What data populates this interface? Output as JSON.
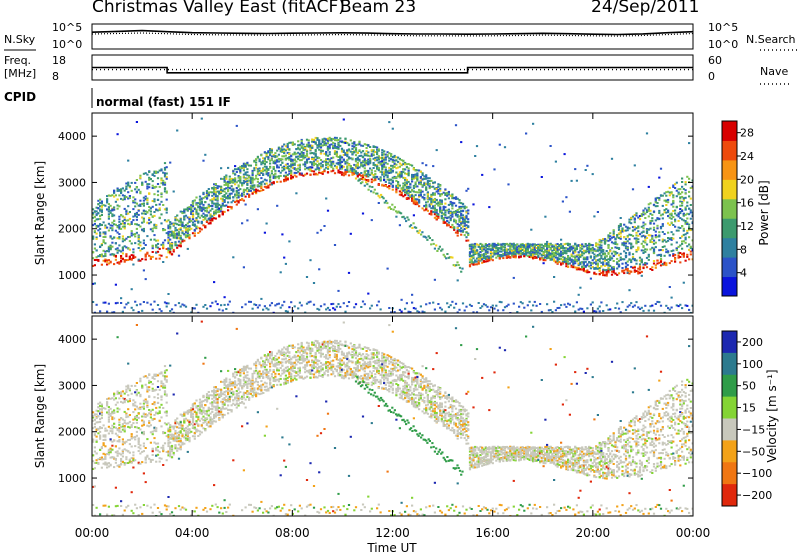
{
  "header": {
    "station": "Christmas Valley East (fitACF)",
    "beam": "Beam 23",
    "date": "24/Sep/2011"
  },
  "noise_panel": {
    "left_label": "N.Sky",
    "left_ticks": [
      "10^5",
      "10^0"
    ],
    "right_ticks": [
      "10^5",
      "10^0"
    ],
    "right_label": "N.Search"
  },
  "freq_panel": {
    "left_label_1": "Freq.",
    "left_label_2": "[MHz]",
    "left_ticks": [
      "18",
      "8"
    ],
    "right_ticks": [
      "60",
      "0"
    ],
    "right_label": "Nave"
  },
  "cpid": {
    "label": "CPID",
    "mode": "normal (fast) 151 IF"
  },
  "colors": {
    "power_scale": [
      "#0a14dc",
      "#2b53c8",
      "#2e80a0",
      "#3c9a6e",
      "#7cc24e",
      "#f0d21e",
      "#f79414",
      "#ee4a0c",
      "#d80000"
    ],
    "velocity_scale": [
      "#1c28b0",
      "#2c7a8e",
      "#2f9c48",
      "#84d434",
      "#c8c8bc",
      "#f3a218",
      "#f07612",
      "#e0280c"
    ]
  },
  "chart_data": [
    {
      "type": "line",
      "panel": "noise",
      "y_scale": "log",
      "ylim": [
        1,
        100000
      ],
      "x_range_hours": [
        0,
        24
      ],
      "series": [
        {
          "name": "N.Sky",
          "x": [
            0,
            1,
            2,
            3,
            4,
            5,
            6,
            7,
            8,
            9,
            10,
            11,
            12,
            13,
            14,
            15,
            16,
            17,
            18,
            19,
            20,
            21,
            22,
            23,
            24
          ],
          "y": [
            4000,
            6000,
            9000,
            5000,
            3000,
            2500,
            2200,
            2000,
            2300,
            2600,
            2800,
            2400,
            1800,
            1500,
            1500,
            1400,
            1500,
            1800,
            2200,
            1800,
            1400,
            1200,
            1600,
            3000,
            5000
          ]
        },
        {
          "name": "N.Search",
          "x": [
            0,
            1,
            2,
            3,
            4,
            5,
            6,
            7,
            8,
            9,
            10,
            11,
            12,
            13,
            14,
            15,
            16,
            17,
            18,
            19,
            20,
            21,
            22,
            23,
            24
          ],
          "y": [
            1500,
            2000,
            2500,
            1800,
            1200,
            1000,
            900,
            800,
            900,
            1000,
            1100,
            950,
            750,
            600,
            600,
            550,
            600,
            700,
            850,
            700,
            600,
            500,
            700,
            1200,
            2000
          ]
        }
      ]
    },
    {
      "type": "line",
      "panel": "frequency",
      "ylim": [
        8,
        18
      ],
      "x_range_hours": [
        0,
        24
      ],
      "series": [
        {
          "name": "Freq.",
          "x": [
            0,
            3,
            3,
            15,
            15,
            24
          ],
          "y": [
            13,
            13,
            10.5,
            10.5,
            13,
            13
          ]
        },
        {
          "name": "Nave",
          "x": [
            0,
            24
          ],
          "y": [
            12,
            12
          ]
        }
      ]
    },
    {
      "type": "heatmap",
      "panel": "power",
      "ylabel": "Slant Range [km]",
      "ylim": [
        180,
        4500
      ],
      "y_ticks": [
        1000,
        2000,
        3000,
        4000
      ],
      "x_range_hours": [
        0,
        24
      ],
      "colorbar_label": "Power [dB]",
      "colorbar_range": [
        0,
        30
      ],
      "colorbar_ticks": [
        4,
        8,
        12,
        16,
        20,
        24,
        28
      ]
    },
    {
      "type": "heatmap",
      "panel": "velocity",
      "ylabel": "Slant Range [km]",
      "ylim": [
        180,
        4500
      ],
      "y_ticks": [
        1000,
        2000,
        3000,
        4000
      ],
      "x_range_hours": [
        0,
        24
      ],
      "x_ticks": [
        "00:00",
        "04:00",
        "08:00",
        "12:00",
        "16:00",
        "20:00",
        "00:00"
      ],
      "xlabel": "Time UT",
      "colorbar_label": "Velocity [m s⁻¹]",
      "colorbar_ticks": [
        "200",
        "100",
        "50",
        "15",
        "−15",
        "−50",
        "−100",
        "−200"
      ]
    }
  ]
}
